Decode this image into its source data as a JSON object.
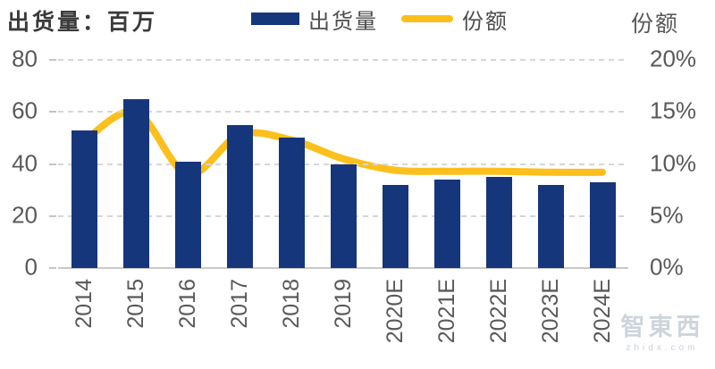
{
  "header": {
    "title": "出货量：百万",
    "right_axis_title": "份额",
    "legend": [
      {
        "label": "出货量",
        "type": "bar",
        "color": "#16367C"
      },
      {
        "label": "份额",
        "type": "line",
        "color": "#FCBF1C"
      }
    ]
  },
  "watermark": {
    "text": "智東西",
    "subtext": "zhidx.com"
  },
  "chart_data": {
    "type": "bar",
    "title": "出货量：百万",
    "categories": [
      "2014",
      "2015",
      "2016",
      "2017",
      "2018",
      "2019",
      "2020E",
      "2021E",
      "2022E",
      "2023E",
      "2024E"
    ],
    "series": [
      {
        "name": "出货量",
        "type": "bar",
        "axis": "left",
        "color": "#16367C",
        "values": [
          53,
          65,
          41,
          55,
          50,
          40,
          32,
          34,
          35,
          32,
          33
        ]
      },
      {
        "name": "份额",
        "type": "line",
        "axis": "right",
        "color": "#FCBF1C",
        "unit": "%",
        "values": [
          12.2,
          15.0,
          9.0,
          12.8,
          12.3,
          10.5,
          9.4,
          9.3,
          9.3,
          9.2,
          9.2
        ]
      }
    ],
    "left_axis": {
      "label": "出货量：百万",
      "ticks": [
        "80",
        "60",
        "40",
        "20",
        "0"
      ],
      "min": 0,
      "max": 80
    },
    "right_axis": {
      "label": "份额",
      "ticks": [
        "20%",
        "15%",
        "10%",
        "5%",
        "0%"
      ],
      "min": 0,
      "max": 20
    },
    "grid": "horizontal dashed, on",
    "legend_position": "top-center"
  }
}
